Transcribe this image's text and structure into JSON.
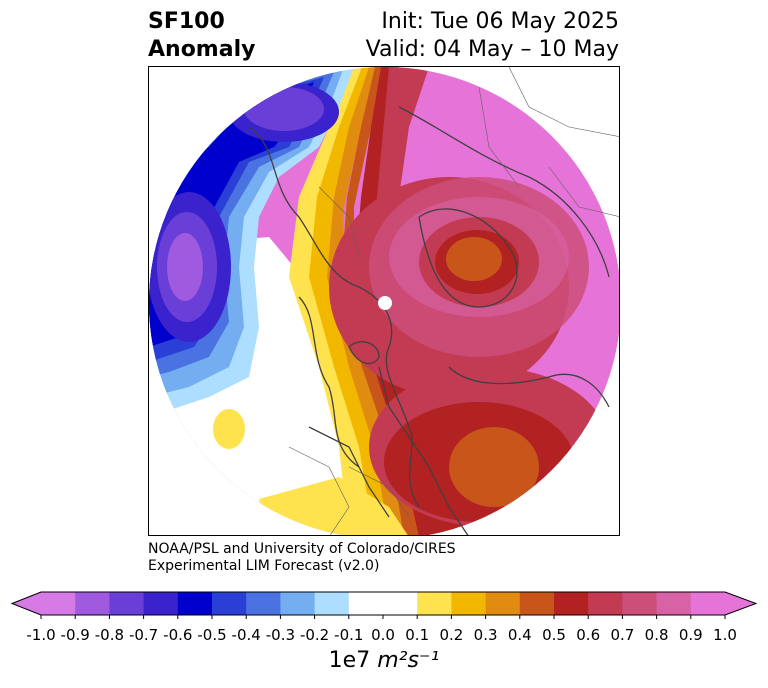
{
  "header": {
    "title": "SF100",
    "subtitle": "Anomaly",
    "init": "Init: Tue 06 May 2025",
    "valid": "Valid: 04 May – 10 May"
  },
  "credits": {
    "line1": "NOAA/PSL and University of Colorado/CIRES",
    "line2": "Experimental LIM Forecast (v2.0)"
  },
  "colorbar": {
    "ticks": [
      "-1.0",
      "-0.9",
      "-0.8",
      "-0.7",
      "-0.6",
      "-0.5",
      "-0.4",
      "-0.3",
      "-0.2",
      "-0.1",
      "0.0",
      "0.1",
      "0.2",
      "0.3",
      "0.4",
      "0.5",
      "0.6",
      "0.7",
      "0.8",
      "0.9",
      "1.0"
    ],
    "colors": [
      "#d67ae6",
      "#a05ae0",
      "#6a3fd8",
      "#3a22cc",
      "#0000cc",
      "#2a3fd6",
      "#4a72e0",
      "#74aef0",
      "#addeff",
      "#ffffff",
      "#ffffff",
      "#ffe34e",
      "#f2b800",
      "#e08c10",
      "#c8561a",
      "#b22222",
      "#c23b52",
      "#cc4f7a",
      "#d862a6",
      "#e674d8"
    ],
    "extend_low": "#d67ae6",
    "extend_high": "#e674d8",
    "units_prefix": "1e7 ",
    "units_math": "m²s⁻¹"
  },
  "map": {
    "projection": "north-polar-stereographic",
    "variable": "streamfunction 100 hPa anomaly",
    "features": [
      "strong positive anomaly over Arctic and Eurasia",
      "negative anomaly over North Pacific",
      "positive center over North Atlantic",
      "positive center over Siberia"
    ]
  }
}
